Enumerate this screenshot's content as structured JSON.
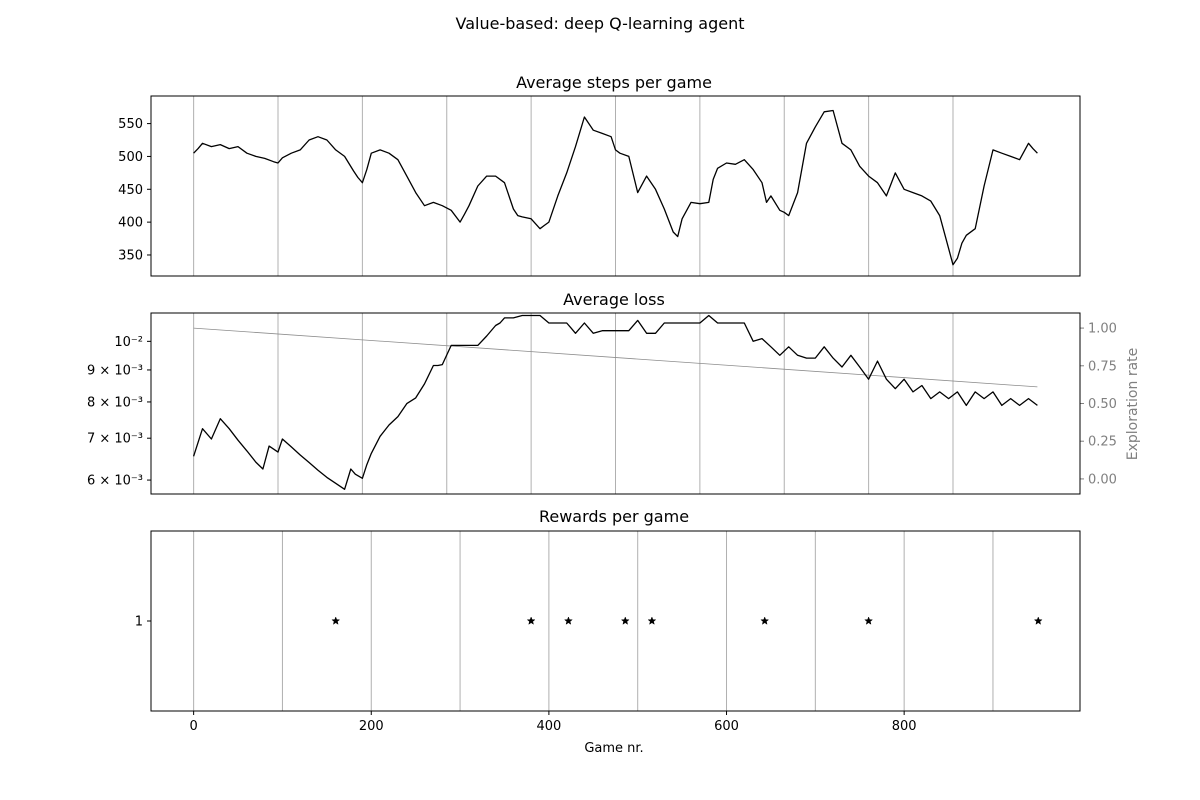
{
  "suptitle": "Value-based: deep Q-learning agent",
  "chart_data": [
    {
      "type": "line",
      "title": "Average steps per game",
      "ylim": [
        318,
        592
      ],
      "xlim": [
        -48,
        998
      ],
      "yticks": [
        350,
        400,
        450,
        500,
        550
      ],
      "ytick_labels": [
        "350",
        "400",
        "450",
        "500",
        "550"
      ],
      "xticks_visible": false,
      "grid_x": [
        0,
        95,
        190,
        285,
        380,
        475,
        570,
        665,
        760,
        855
      ],
      "series": [
        {
          "x": [
            0,
            5,
            10,
            20,
            30,
            40,
            50,
            60,
            70,
            80,
            90,
            95,
            100,
            110,
            120,
            130,
            140,
            150,
            160,
            170,
            180,
            185,
            190,
            195,
            200,
            210,
            220,
            230,
            240,
            250,
            260,
            270,
            280,
            290,
            300,
            305,
            310,
            320,
            330,
            340,
            350,
            360,
            365,
            370,
            380,
            390,
            395,
            400,
            410,
            420,
            430,
            440,
            450,
            460,
            470,
            475,
            480,
            490,
            500,
            510,
            520,
            530,
            540,
            545,
            550,
            560,
            570,
            580,
            585,
            590,
            600,
            610,
            620,
            630,
            640,
            645,
            650,
            660,
            665,
            670,
            680,
            690,
            700,
            710,
            720,
            730,
            740,
            750,
            760,
            770,
            780,
            790,
            800,
            810,
            820,
            830,
            840,
            850,
            855,
            860,
            865,
            870,
            880,
            890,
            900,
            910,
            920,
            930,
            940,
            945,
            950
          ],
          "y": [
            505,
            512,
            520,
            515,
            518,
            512,
            515,
            505,
            500,
            497,
            492,
            490,
            498,
            505,
            510,
            525,
            530,
            525,
            510,
            500,
            478,
            468,
            460,
            480,
            505,
            510,
            505,
            495,
            470,
            445,
            425,
            430,
            425,
            418,
            400,
            412,
            425,
            455,
            470,
            470,
            460,
            420,
            410,
            408,
            405,
            390,
            395,
            400,
            440,
            475,
            515,
            560,
            540,
            535,
            530,
            510,
            505,
            500,
            445,
            470,
            450,
            420,
            385,
            378,
            405,
            430,
            428,
            430,
            465,
            482,
            490,
            488,
            495,
            480,
            460,
            430,
            440,
            418,
            415,
            410,
            445,
            520,
            545,
            568,
            570,
            520,
            510,
            485,
            470,
            460,
            440,
            475,
            450,
            445,
            440,
            432,
            410,
            360,
            335,
            345,
            368,
            380,
            390,
            455,
            510,
            505,
            500,
            495,
            520,
            512,
            505
          ]
        }
      ]
    },
    {
      "type": "line",
      "title": "Average loss",
      "yscale": "log",
      "ylim": [
        0.0057,
        0.0111
      ],
      "yticks": [
        0.006,
        0.007,
        0.008,
        0.009,
        0.01
      ],
      "ytick_labels": [
        "6 × 10⁻³",
        "7 × 10⁻³",
        "8 × 10⁻³",
        "9 × 10⁻³",
        "10⁻²"
      ],
      "xlim": [
        -48,
        998
      ],
      "grid_x": [
        0,
        95,
        190,
        285,
        380,
        475,
        570,
        665,
        760,
        855
      ],
      "series": [
        {
          "x": [
            0,
            10,
            20,
            30,
            40,
            50,
            60,
            70,
            78,
            85,
            95,
            100,
            110,
            120,
            130,
            140,
            150,
            160,
            170,
            177,
            182,
            190,
            195,
            200,
            210,
            220,
            230,
            240,
            250,
            260,
            270,
            275,
            280,
            290,
            300,
            310,
            320,
            330,
            340,
            345,
            350,
            360,
            370,
            380,
            390,
            400,
            410,
            420,
            425,
            430,
            440,
            450,
            460,
            470,
            480,
            490,
            500,
            510,
            520,
            530,
            540,
            550,
            560,
            570,
            580,
            590,
            600,
            610,
            620,
            630,
            640,
            650,
            660,
            670,
            680,
            690,
            700,
            710,
            720,
            730,
            740,
            750,
            760,
            770,
            780,
            790,
            800,
            810,
            820,
            830,
            840,
            850,
            860,
            870,
            880,
            890,
            900,
            910,
            920,
            930,
            940,
            950
          ],
          "y": [
            0.00655,
            0.00725,
            0.00698,
            0.00752,
            0.00725,
            0.00695,
            0.00668,
            0.00641,
            0.00625,
            0.0068,
            0.00665,
            0.00698,
            0.00678,
            0.00658,
            0.0064,
            0.00622,
            0.00606,
            0.00593,
            0.0058,
            0.00625,
            0.00613,
            0.00604,
            0.00635,
            0.00662,
            0.00705,
            0.00735,
            0.00758,
            0.00795,
            0.00812,
            0.00855,
            0.00915,
            0.00915,
            0.00918,
            0.00985,
            0.00985,
            0.00985,
            0.00985,
            0.0102,
            0.0106,
            0.0107,
            0.0109,
            0.0109,
            0.011,
            0.011,
            0.011,
            0.0107,
            0.0107,
            0.0107,
            0.0105,
            0.0103,
            0.0107,
            0.0103,
            0.0104,
            0.0104,
            0.0104,
            0.0104,
            0.0108,
            0.0103,
            0.0103,
            0.0107,
            0.0107,
            0.0107,
            0.0107,
            0.0107,
            0.011,
            0.0107,
            0.0107,
            0.0107,
            0.0107,
            0.01,
            0.0101,
            0.0098,
            0.0095,
            0.0098,
            0.0095,
            0.0094,
            0.0094,
            0.0098,
            0.0094,
            0.0091,
            0.0095,
            0.0091,
            0.0087,
            0.0093,
            0.0087,
            0.0084,
            0.0087,
            0.0083,
            0.0085,
            0.0081,
            0.0083,
            0.0081,
            0.0083,
            0.0079,
            0.0083,
            0.0081,
            0.0083,
            0.0079,
            0.0081,
            0.0079,
            0.0081,
            0.0079
          ]
        }
      ],
      "secondary_axis": {
        "label": "Exploration rate",
        "ylim": [
          -0.1,
          1.1
        ],
        "yticks": [
          0.0,
          0.25,
          0.5,
          0.75,
          1.0
        ],
        "ytick_labels": [
          "0.00",
          "0.25",
          "0.50",
          "0.75",
          "1.00"
        ],
        "color": "#808080",
        "series": [
          {
            "x": [
              0,
              950
            ],
            "y": [
              1.0,
              0.61
            ]
          }
        ]
      }
    },
    {
      "type": "scatter",
      "title": "Rewards per game",
      "xlabel": "Game nr.",
      "xlim": [
        -48,
        998
      ],
      "ylim": [
        0.7,
        1.3
      ],
      "xticks": [
        0,
        200,
        400,
        600,
        800
      ],
      "xtick_labels": [
        "0",
        "200",
        "400",
        "600",
        "800"
      ],
      "yticks": [
        1
      ],
      "ytick_labels": [
        "1"
      ],
      "grid_x": [
        0,
        100,
        200,
        300,
        400,
        500,
        600,
        700,
        800,
        900
      ],
      "marker": "star",
      "series": [
        {
          "x": [
            160,
            380,
            422,
            486,
            516,
            643,
            760,
            951
          ],
          "y": [
            1,
            1,
            1,
            1,
            1,
            1,
            1,
            1
          ]
        }
      ]
    }
  ]
}
